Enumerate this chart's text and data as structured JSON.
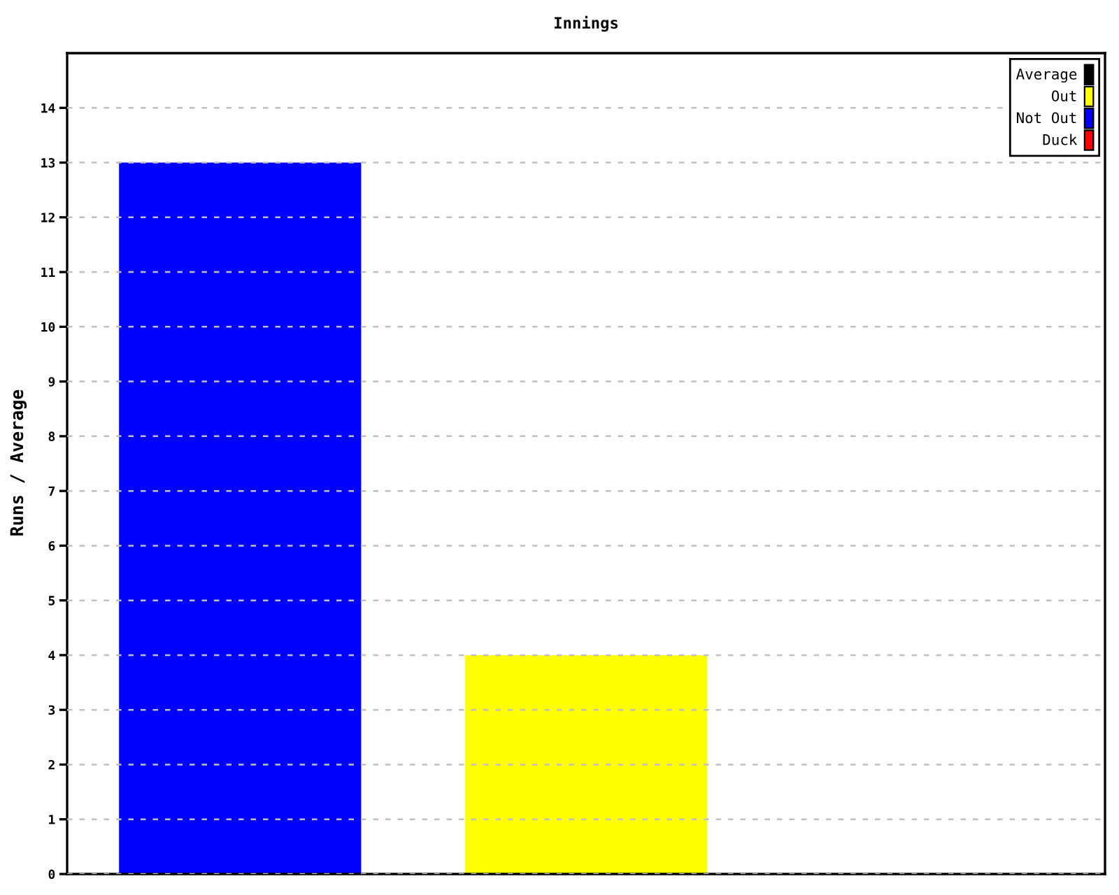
{
  "chart_data": {
    "type": "bar",
    "title": "Innings",
    "ylabel": "Runs / Average",
    "categories": [
      null,
      null,
      null
    ],
    "stacked": true,
    "series": [
      {
        "name": "Average",
        "color": "#000000",
        "values": [
          null,
          null,
          null
        ]
      },
      {
        "name": "Out",
        "color": "#ffff00",
        "values": [
          null,
          4,
          null
        ]
      },
      {
        "name": "Not Out",
        "color": "#0000ff",
        "values": [
          13,
          null,
          null
        ]
      },
      {
        "name": "Duck",
        "color": "#ff0000",
        "values": [
          null,
          null,
          null
        ]
      }
    ],
    "ylim": [
      0,
      15
    ],
    "yticks": [
      0,
      1,
      2,
      3,
      4,
      5,
      6,
      7,
      8,
      9,
      10,
      11,
      12,
      13,
      14
    ],
    "grid": "y",
    "legend": "top right"
  }
}
